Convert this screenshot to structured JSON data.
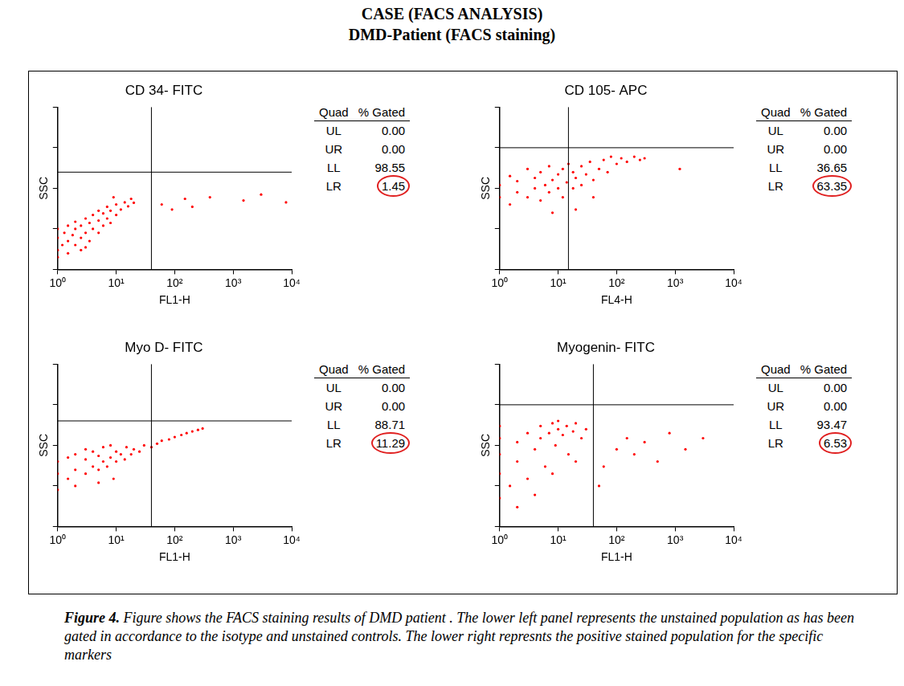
{
  "header": {
    "title": "CASE (FACS ANALYSIS)",
    "subtitle": "DMD-Patient (FACS staining)"
  },
  "chart_data": [
    {
      "type": "scatter",
      "title": "CD 34- FITC",
      "x_label": "FL1-H",
      "y_label": "SSC",
      "log": true,
      "xlim": [
        1,
        10000
      ],
      "xticks": [
        {
          "value": 1,
          "label": "10⁰"
        },
        {
          "value": 10,
          "label": "10¹"
        },
        {
          "value": 100,
          "label": "10²"
        },
        {
          "value": 1000,
          "label": "10³"
        },
        {
          "value": 10000,
          "label": "10⁴"
        }
      ],
      "ylim": [
        1,
        10000
      ],
      "yticks": [
        1,
        10,
        100,
        1000,
        10000
      ],
      "tick_labels": "x",
      "grid": false,
      "color": "#ff0000",
      "gate": {
        "x": 40,
        "y": 250
      },
      "points": [
        [
          1,
          3
        ],
        [
          1,
          6
        ],
        [
          1,
          10
        ],
        [
          1.2,
          4
        ],
        [
          1.3,
          8
        ],
        [
          1.5,
          5
        ],
        [
          1.5,
          12
        ],
        [
          1.8,
          7
        ],
        [
          2,
          4
        ],
        [
          2,
          10
        ],
        [
          2,
          15
        ],
        [
          2.5,
          6
        ],
        [
          2.5,
          12
        ],
        [
          3,
          8
        ],
        [
          3,
          18
        ],
        [
          3.5,
          5
        ],
        [
          3.5,
          14
        ],
        [
          4,
          10
        ],
        [
          4,
          22
        ],
        [
          5,
          8
        ],
        [
          5,
          16
        ],
        [
          5,
          28
        ],
        [
          6,
          12
        ],
        [
          6,
          24
        ],
        [
          7,
          18
        ],
        [
          7,
          35
        ],
        [
          8,
          14
        ],
        [
          8,
          28
        ],
        [
          10,
          22
        ],
        [
          10,
          40
        ],
        [
          12,
          30
        ],
        [
          14,
          45
        ],
        [
          16,
          36
        ],
        [
          18,
          55
        ],
        [
          20,
          44
        ],
        [
          1,
          2
        ],
        [
          1.5,
          2.5
        ],
        [
          2.5,
          3
        ],
        [
          3,
          3.5
        ],
        [
          9,
          60
        ],
        [
          60,
          40
        ],
        [
          90,
          30
        ],
        [
          150,
          55
        ],
        [
          200,
          35
        ],
        [
          400,
          60
        ],
        [
          1500,
          50
        ],
        [
          3000,
          70
        ],
        [
          8000,
          45
        ]
      ],
      "quadrant_table": {
        "columns": [
          "Quad",
          "% Gated"
        ],
        "rows": [
          {
            "name": "UL",
            "value": 0,
            "value_label": "0.00"
          },
          {
            "name": "UR",
            "value": 0,
            "value_label": "0.00"
          },
          {
            "name": "LL",
            "value": 98.55,
            "value_label": "98.55"
          },
          {
            "name": "LR",
            "value": 1.45,
            "value_label": "1.45",
            "marker": "circle",
            "color": "#e02020"
          }
        ]
      }
    },
    {
      "type": "scatter",
      "title": "CD 105- APC",
      "x_label": "FL4-H",
      "y_label": "SSC",
      "log": true,
      "xlim": [
        1,
        10000
      ],
      "xticks": [
        {
          "value": 1,
          "label": "10⁰"
        },
        {
          "value": 10,
          "label": "10¹"
        },
        {
          "value": 100,
          "label": "10²"
        },
        {
          "value": 1000,
          "label": "10³"
        },
        {
          "value": 10000,
          "label": "10⁴"
        }
      ],
      "ylim": [
        1,
        10000
      ],
      "yticks": [
        1,
        10,
        100,
        1000,
        10000
      ],
      "tick_labels": "x",
      "grid": false,
      "color": "#ff0000",
      "gate": {
        "x": 15,
        "y": 1000
      },
      "points": [
        [
          1,
          60
        ],
        [
          1,
          120
        ],
        [
          1.5,
          40
        ],
        [
          1.5,
          200
        ],
        [
          2,
          80
        ],
        [
          2,
          150
        ],
        [
          3,
          60
        ],
        [
          3,
          300
        ],
        [
          4,
          100
        ],
        [
          4,
          180
        ],
        [
          5,
          50
        ],
        [
          5,
          250
        ],
        [
          6,
          120
        ],
        [
          7,
          80
        ],
        [
          7,
          350
        ],
        [
          8,
          160
        ],
        [
          10,
          100
        ],
        [
          10,
          220
        ],
        [
          12,
          60
        ],
        [
          12,
          300
        ],
        [
          14,
          140
        ],
        [
          15,
          400
        ],
        [
          18,
          100
        ],
        [
          18,
          250
        ],
        [
          20,
          180
        ],
        [
          25,
          120
        ],
        [
          25,
          350
        ],
        [
          30,
          220
        ],
        [
          35,
          450
        ],
        [
          40,
          160
        ],
        [
          50,
          300
        ],
        [
          60,
          500
        ],
        [
          70,
          250
        ],
        [
          80,
          600
        ],
        [
          100,
          400
        ],
        [
          120,
          550
        ],
        [
          150,
          450
        ],
        [
          200,
          600
        ],
        [
          250,
          500
        ],
        [
          300,
          550
        ],
        [
          20,
          30
        ],
        [
          8,
          25
        ],
        [
          40,
          60
        ],
        [
          1200,
          300
        ]
      ],
      "quadrant_table": {
        "columns": [
          "Quad",
          "% Gated"
        ],
        "rows": [
          {
            "name": "UL",
            "value": 0,
            "value_label": "0.00"
          },
          {
            "name": "UR",
            "value": 0,
            "value_label": "0.00"
          },
          {
            "name": "LL",
            "value": 36.65,
            "value_label": "36.65"
          },
          {
            "name": "LR",
            "value": 63.35,
            "value_label": "63.35",
            "marker": "circle",
            "color": "#e02020"
          }
        ]
      }
    },
    {
      "type": "scatter",
      "title": "Myo D- FITC",
      "x_label": "FL1-H",
      "y_label": "SSC",
      "log": true,
      "xlim": [
        1,
        10000
      ],
      "xticks": [
        {
          "value": 1,
          "label": "10⁰"
        },
        {
          "value": 10,
          "label": "10¹"
        },
        {
          "value": 100,
          "label": "10²"
        },
        {
          "value": 1000,
          "label": "10³"
        },
        {
          "value": 10000,
          "label": "10⁴"
        }
      ],
      "ylim": [
        1,
        10000
      ],
      "yticks": [
        1,
        10,
        100,
        1000,
        10000
      ],
      "tick_labels": "x",
      "grid": false,
      "color": "#ff0000",
      "gate": {
        "x": 40,
        "y": 400
      },
      "points": [
        [
          1,
          20
        ],
        [
          1,
          40
        ],
        [
          1.5,
          15
        ],
        [
          1.5,
          50
        ],
        [
          2,
          25
        ],
        [
          2,
          60
        ],
        [
          3,
          20
        ],
        [
          3,
          45
        ],
        [
          3,
          80
        ],
        [
          4,
          30
        ],
        [
          4,
          70
        ],
        [
          5,
          25
        ],
        [
          5,
          55
        ],
        [
          6,
          40
        ],
        [
          6,
          90
        ],
        [
          7,
          30
        ],
        [
          8,
          50
        ],
        [
          8,
          100
        ],
        [
          10,
          40
        ],
        [
          10,
          70
        ],
        [
          12,
          60
        ],
        [
          14,
          45
        ],
        [
          15,
          90
        ],
        [
          18,
          60
        ],
        [
          20,
          80
        ],
        [
          25,
          70
        ],
        [
          30,
          100
        ],
        [
          40,
          90
        ],
        [
          50,
          110
        ],
        [
          60,
          130
        ],
        [
          80,
          140
        ],
        [
          100,
          160
        ],
        [
          130,
          180
        ],
        [
          160,
          200
        ],
        [
          200,
          220
        ],
        [
          250,
          240
        ],
        [
          300,
          260
        ],
        [
          1,
          8
        ],
        [
          2,
          10
        ],
        [
          5,
          12
        ],
        [
          9,
          15
        ]
      ],
      "quadrant_table": {
        "columns": [
          "Quad",
          "% Gated"
        ],
        "rows": [
          {
            "name": "UL",
            "value": 0,
            "value_label": "0.00"
          },
          {
            "name": "UR",
            "value": 0,
            "value_label": "0.00"
          },
          {
            "name": "LL",
            "value": 88.71,
            "value_label": "88.71"
          },
          {
            "name": "LR",
            "value": 11.29,
            "value_label": "11.29",
            "marker": "circle",
            "color": "#e02020"
          }
        ]
      }
    },
    {
      "type": "scatter",
      "title": "Myogenin- FITC",
      "x_label": "FL1-H",
      "y_label": "SSC",
      "log": true,
      "xlim": [
        1,
        10000
      ],
      "xticks": [
        {
          "value": 1,
          "label": "10⁰"
        },
        {
          "value": 10,
          "label": "10¹"
        },
        {
          "value": 100,
          "label": "10²"
        },
        {
          "value": 1000,
          "label": "10³"
        },
        {
          "value": 10000,
          "label": "10⁴"
        }
      ],
      "ylim": [
        1,
        10000
      ],
      "yticks": [
        1,
        10,
        100,
        1000,
        10000
      ],
      "tick_labels": "x",
      "grid": false,
      "color": "#ff0000",
      "gate": {
        "x": 40,
        "y": 1000
      },
      "points": [
        [
          1,
          5
        ],
        [
          1,
          20
        ],
        [
          1,
          60
        ],
        [
          1,
          150
        ],
        [
          1,
          300
        ],
        [
          1.5,
          10
        ],
        [
          2,
          40
        ],
        [
          2,
          120
        ],
        [
          3,
          15
        ],
        [
          3,
          200
        ],
        [
          4,
          80
        ],
        [
          5,
          150
        ],
        [
          5,
          300
        ],
        [
          6,
          30
        ],
        [
          7,
          200
        ],
        [
          8,
          350
        ],
        [
          9,
          100
        ],
        [
          10,
          250
        ],
        [
          10,
          400
        ],
        [
          12,
          180
        ],
        [
          14,
          300
        ],
        [
          15,
          60
        ],
        [
          18,
          220
        ],
        [
          20,
          350
        ],
        [
          25,
          150
        ],
        [
          30,
          250
        ],
        [
          2,
          3
        ],
        [
          4,
          6
        ],
        [
          8,
          20
        ],
        [
          20,
          40
        ],
        [
          60,
          30
        ],
        [
          100,
          80
        ],
        [
          150,
          150
        ],
        [
          200,
          60
        ],
        [
          300,
          120
        ],
        [
          500,
          40
        ],
        [
          800,
          200
        ],
        [
          1500,
          80
        ],
        [
          3000,
          150
        ],
        [
          50,
          10
        ]
      ],
      "quadrant_table": {
        "columns": [
          "Quad",
          "% Gated"
        ],
        "rows": [
          {
            "name": "UL",
            "value": 0,
            "value_label": "0.00"
          },
          {
            "name": "UR",
            "value": 0,
            "value_label": "0.00"
          },
          {
            "name": "LL",
            "value": 93.47,
            "value_label": "93.47"
          },
          {
            "name": "LR",
            "value": 6.53,
            "value_label": "6.53",
            "marker": "circle",
            "color": "#e02020"
          }
        ]
      }
    }
  ],
  "caption": {
    "label": "Figure 4.",
    "text": "Figure shows the FACS staining results of DMD patient . The lower left panel represents the unstained population as has been gated in accordance to the isotype and unstained controls. The lower right represnts the positive stained population for the specific markers"
  }
}
